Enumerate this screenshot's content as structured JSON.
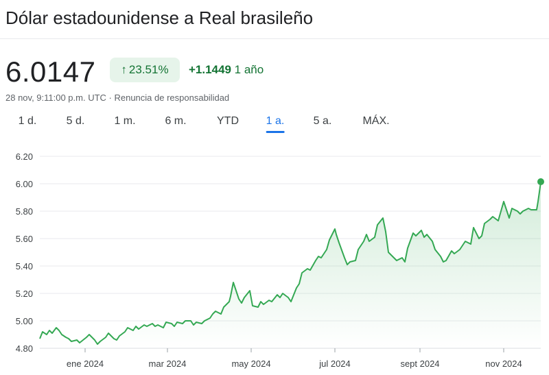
{
  "title": "Dólar estadounidense a Real brasileño",
  "quote": {
    "price": "6.0147",
    "change_pct": "23.51%",
    "change_abs": "+1.1449",
    "change_period": "1 año",
    "arrow_icon": "arrow-up-icon"
  },
  "meta": "28 nov, 9:11:00 p.m. UTC · Renuncia de responsabilidad",
  "tabs": [
    {
      "label": "1 d.",
      "active": false
    },
    {
      "label": "5 d.",
      "active": false
    },
    {
      "label": "1 m.",
      "active": false
    },
    {
      "label": "6 m.",
      "active": false
    },
    {
      "label": "YTD",
      "active": false
    },
    {
      "label": "1 a.",
      "active": true
    },
    {
      "label": "5 a.",
      "active": false
    },
    {
      "label": "MÁX.",
      "active": false
    }
  ],
  "colors": {
    "line": "#34a853",
    "positive_text": "#137333",
    "badge_bg": "#e6f4ea",
    "active_tab": "#1a73e8",
    "grid": "#e8eaed"
  },
  "chart_data": {
    "type": "area",
    "title": "",
    "xlabel": "",
    "ylabel": "",
    "ylim": [
      4.8,
      6.2
    ],
    "yticks": [
      "6.20",
      "6.00",
      "5.80",
      "5.60",
      "5.40",
      "5.20",
      "5.00",
      "4.80"
    ],
    "xticks": [
      {
        "date": "2024-01-01",
        "label": "ene 2024"
      },
      {
        "date": "2024-03-01",
        "label": "mar 2024"
      },
      {
        "date": "2024-05-01",
        "label": "may 2024"
      },
      {
        "date": "2024-07-01",
        "label": "jul 2024"
      },
      {
        "date": "2024-09-01",
        "label": "sept 2024"
      },
      {
        "date": "2024-11-01",
        "label": "nov 2024"
      }
    ],
    "xlim": [
      "2023-11-29",
      "2024-11-28"
    ],
    "grid": true,
    "legend": "none",
    "series": [
      {
        "x": [
          "2023-11-29",
          "2023-12-01",
          "2023-12-04",
          "2023-12-06",
          "2023-12-08",
          "2023-12-11",
          "2023-12-13",
          "2023-12-15",
          "2023-12-18",
          "2023-12-20",
          "2023-12-22",
          "2023-12-26",
          "2023-12-28",
          "2024-01-02",
          "2024-01-04",
          "2024-01-08",
          "2024-01-10",
          "2024-01-12",
          "2024-01-16",
          "2024-01-18",
          "2024-01-22",
          "2024-01-24",
          "2024-01-26",
          "2024-01-30",
          "2024-02-01",
          "2024-02-05",
          "2024-02-07",
          "2024-02-09",
          "2024-02-13",
          "2024-02-15",
          "2024-02-19",
          "2024-02-21",
          "2024-02-23",
          "2024-02-27",
          "2024-02-29",
          "2024-03-04",
          "2024-03-06",
          "2024-03-08",
          "2024-03-12",
          "2024-03-14",
          "2024-03-18",
          "2024-03-20",
          "2024-03-22",
          "2024-03-26",
          "2024-03-28",
          "2024-04-01",
          "2024-04-03",
          "2024-04-05",
          "2024-04-09",
          "2024-04-11",
          "2024-04-15",
          "2024-04-16",
          "2024-04-18",
          "2024-04-22",
          "2024-04-24",
          "2024-04-26",
          "2024-04-30",
          "2024-05-02",
          "2024-05-06",
          "2024-05-08",
          "2024-05-10",
          "2024-05-14",
          "2024-05-16",
          "2024-05-20",
          "2024-05-22",
          "2024-05-24",
          "2024-05-28",
          "2024-05-30",
          "2024-06-03",
          "2024-06-05",
          "2024-06-07",
          "2024-06-11",
          "2024-06-13",
          "2024-06-17",
          "2024-06-19",
          "2024-06-21",
          "2024-06-25",
          "2024-06-27",
          "2024-07-01",
          "2024-07-02",
          "2024-07-04",
          "2024-07-08",
          "2024-07-10",
          "2024-07-12",
          "2024-07-16",
          "2024-07-18",
          "2024-07-22",
          "2024-07-24",
          "2024-07-26",
          "2024-07-30",
          "2024-08-01",
          "2024-08-05",
          "2024-08-07",
          "2024-08-09",
          "2024-08-13",
          "2024-08-15",
          "2024-08-19",
          "2024-08-21",
          "2024-08-23",
          "2024-08-27",
          "2024-08-29",
          "2024-09-02",
          "2024-09-04",
          "2024-09-06",
          "2024-09-10",
          "2024-09-12",
          "2024-09-16",
          "2024-09-18",
          "2024-09-20",
          "2024-09-24",
          "2024-09-26",
          "2024-09-30",
          "2024-10-02",
          "2024-10-04",
          "2024-10-08",
          "2024-10-10",
          "2024-10-14",
          "2024-10-16",
          "2024-10-18",
          "2024-10-22",
          "2024-10-24",
          "2024-10-28",
          "2024-10-30",
          "2024-11-01",
          "2024-11-05",
          "2024-11-07",
          "2024-11-11",
          "2024-11-13",
          "2024-11-15",
          "2024-11-19",
          "2024-11-21",
          "2024-11-25",
          "2024-11-26",
          "2024-11-28"
        ],
        "y": [
          4.87,
          4.92,
          4.9,
          4.93,
          4.91,
          4.95,
          4.93,
          4.9,
          4.88,
          4.87,
          4.85,
          4.86,
          4.84,
          4.88,
          4.9,
          4.86,
          4.83,
          4.85,
          4.88,
          4.91,
          4.87,
          4.86,
          4.89,
          4.92,
          4.95,
          4.93,
          4.96,
          4.94,
          4.97,
          4.96,
          4.98,
          4.96,
          4.97,
          4.95,
          4.99,
          4.98,
          4.96,
          4.99,
          4.98,
          5.0,
          5.0,
          4.97,
          4.99,
          4.98,
          5.0,
          5.02,
          5.05,
          5.07,
          5.05,
          5.1,
          5.14,
          5.18,
          5.28,
          5.16,
          5.13,
          5.17,
          5.22,
          5.11,
          5.1,
          5.14,
          5.12,
          5.15,
          5.14,
          5.19,
          5.17,
          5.2,
          5.17,
          5.14,
          5.24,
          5.27,
          5.35,
          5.38,
          5.37,
          5.44,
          5.47,
          5.46,
          5.52,
          5.59,
          5.67,
          5.63,
          5.57,
          5.46,
          5.41,
          5.43,
          5.44,
          5.52,
          5.58,
          5.63,
          5.58,
          5.61,
          5.7,
          5.75,
          5.65,
          5.5,
          5.46,
          5.44,
          5.46,
          5.43,
          5.53,
          5.64,
          5.62,
          5.66,
          5.61,
          5.63,
          5.58,
          5.52,
          5.47,
          5.43,
          5.44,
          5.51,
          5.49,
          5.52,
          5.55,
          5.58,
          5.56,
          5.68,
          5.6,
          5.62,
          5.71,
          5.74,
          5.76,
          5.73,
          5.8,
          5.87,
          5.75,
          5.82,
          5.8,
          5.78,
          5.8,
          5.82,
          5.81,
          5.81,
          5.87,
          6.01
        ]
      }
    ],
    "last_point": {
      "x": "2024-11-28",
      "y": 6.0147
    }
  }
}
